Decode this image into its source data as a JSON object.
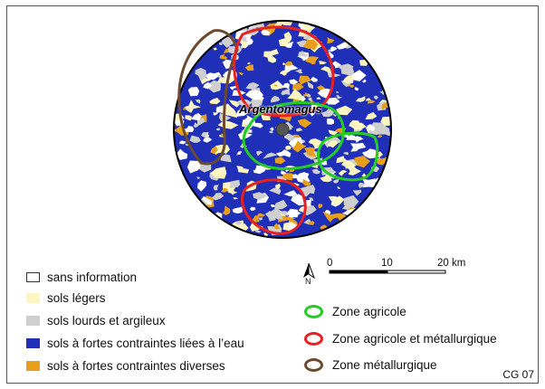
{
  "map": {
    "place_label": "Argentomagus",
    "colors": {
      "water_constraint": "#1f2fb8",
      "light_soil": "#fdf6c0",
      "heavy_soil": "#cfcfcf",
      "diverse_constraint": "#e8a01c",
      "no_info": "#ffffff",
      "agricole": "#22cc22",
      "agricole_metallurgique": "#e82020",
      "metallurgique": "#6b4a2e"
    }
  },
  "north_arrow": {
    "label": "N"
  },
  "scale_bar": {
    "ticks": [
      "0",
      "10",
      "20 km"
    ]
  },
  "soil_legend": [
    {
      "label": "sans information",
      "color": "#ffffff",
      "border": "#333333"
    },
    {
      "label": "sols légers",
      "color": "#fdf6c0",
      "border": "#fdf6c0"
    },
    {
      "label": "sols lourds et argileux",
      "color": "#cfcfcf",
      "border": "#cfcfcf"
    },
    {
      "label": "sols à fortes contraintes liées à l’eau",
      "color": "#1f2fb8",
      "border": "#1f2fb8"
    },
    {
      "label": "sols à fortes contraintes diverses",
      "color": "#e8a01c",
      "border": "#e8a01c"
    }
  ],
  "zone_legend": [
    {
      "label": "Zone agricole",
      "color": "#22cc22"
    },
    {
      "label": "Zone agricole et métallurgique",
      "color": "#e82020"
    },
    {
      "label": "Zone métallurgique",
      "color": "#6b4a2e"
    }
  ],
  "credit": "CG 07"
}
